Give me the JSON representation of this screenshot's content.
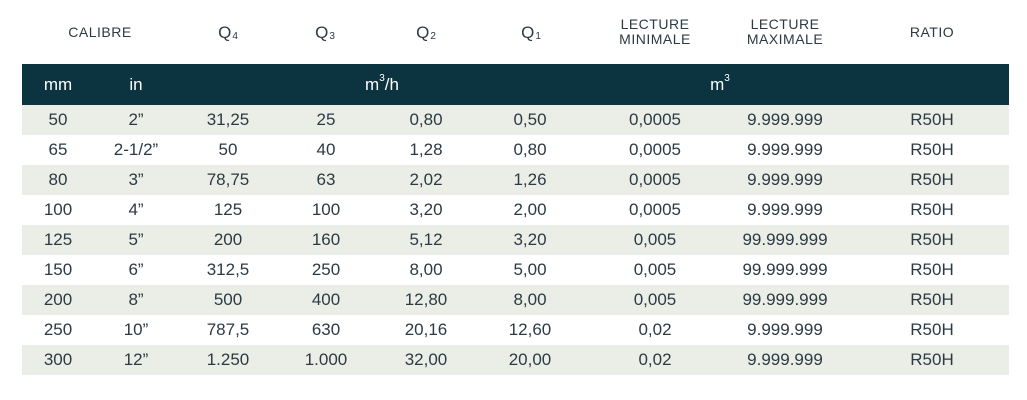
{
  "header": {
    "calibre": "CALIBRE",
    "q4": {
      "base": "Q",
      "sub": "4"
    },
    "q3": {
      "base": "Q",
      "sub": "3"
    },
    "q2": {
      "base": "Q",
      "sub": "2"
    },
    "q1": {
      "base": "Q",
      "sub": "1"
    },
    "lecture_min_line1": "LECTURE",
    "lecture_min_line2": "MINIMALE",
    "lecture_max_line1": "LECTURE",
    "lecture_max_line2": "MAXIMALE",
    "ratio": "RATIO"
  },
  "units": {
    "mm": "mm",
    "in": "in",
    "flow_base": "m",
    "flow_sup": "3",
    "flow_suffix": "/h",
    "volume_base": "m",
    "volume_sup": "3"
  },
  "rows": [
    [
      "50",
      "2”",
      "31,25",
      "25",
      "0,80",
      "0,50",
      "0,0005",
      "9.999.999",
      "R50H"
    ],
    [
      "65",
      "2-1/2”",
      "50",
      "40",
      "1,28",
      "0,80",
      "0,0005",
      "9.999.999",
      "R50H"
    ],
    [
      "80",
      "3”",
      "78,75",
      "63",
      "2,02",
      "1,26",
      "0,0005",
      "9.999.999",
      "R50H"
    ],
    [
      "100",
      "4”",
      "125",
      "100",
      "3,20",
      "2,00",
      "0,0005",
      "9.999.999",
      "R50H"
    ],
    [
      "125",
      "5”",
      "200",
      "160",
      "5,12",
      "3,20",
      "0,005",
      "99.999.999",
      "R50H"
    ],
    [
      "150",
      "6”",
      "312,5",
      "250",
      "8,00",
      "5,00",
      "0,005",
      "99.999.999",
      "R50H"
    ],
    [
      "200",
      "8”",
      "500",
      "400",
      "12,80",
      "8,00",
      "0,005",
      "99.999.999",
      "R50H"
    ],
    [
      "250",
      "10”",
      "787,5",
      "630",
      "20,16",
      "12,60",
      "0,02",
      "9.999.999",
      "R50H"
    ],
    [
      "300",
      "12”",
      "1.250",
      "1.000",
      "32,00",
      "20,00",
      "0,02",
      "9.999.999",
      "R50H"
    ]
  ],
  "colors": {
    "header_bar": "#0b3340",
    "row_shade": "#ebeee7",
    "text": "#2c3a44"
  }
}
